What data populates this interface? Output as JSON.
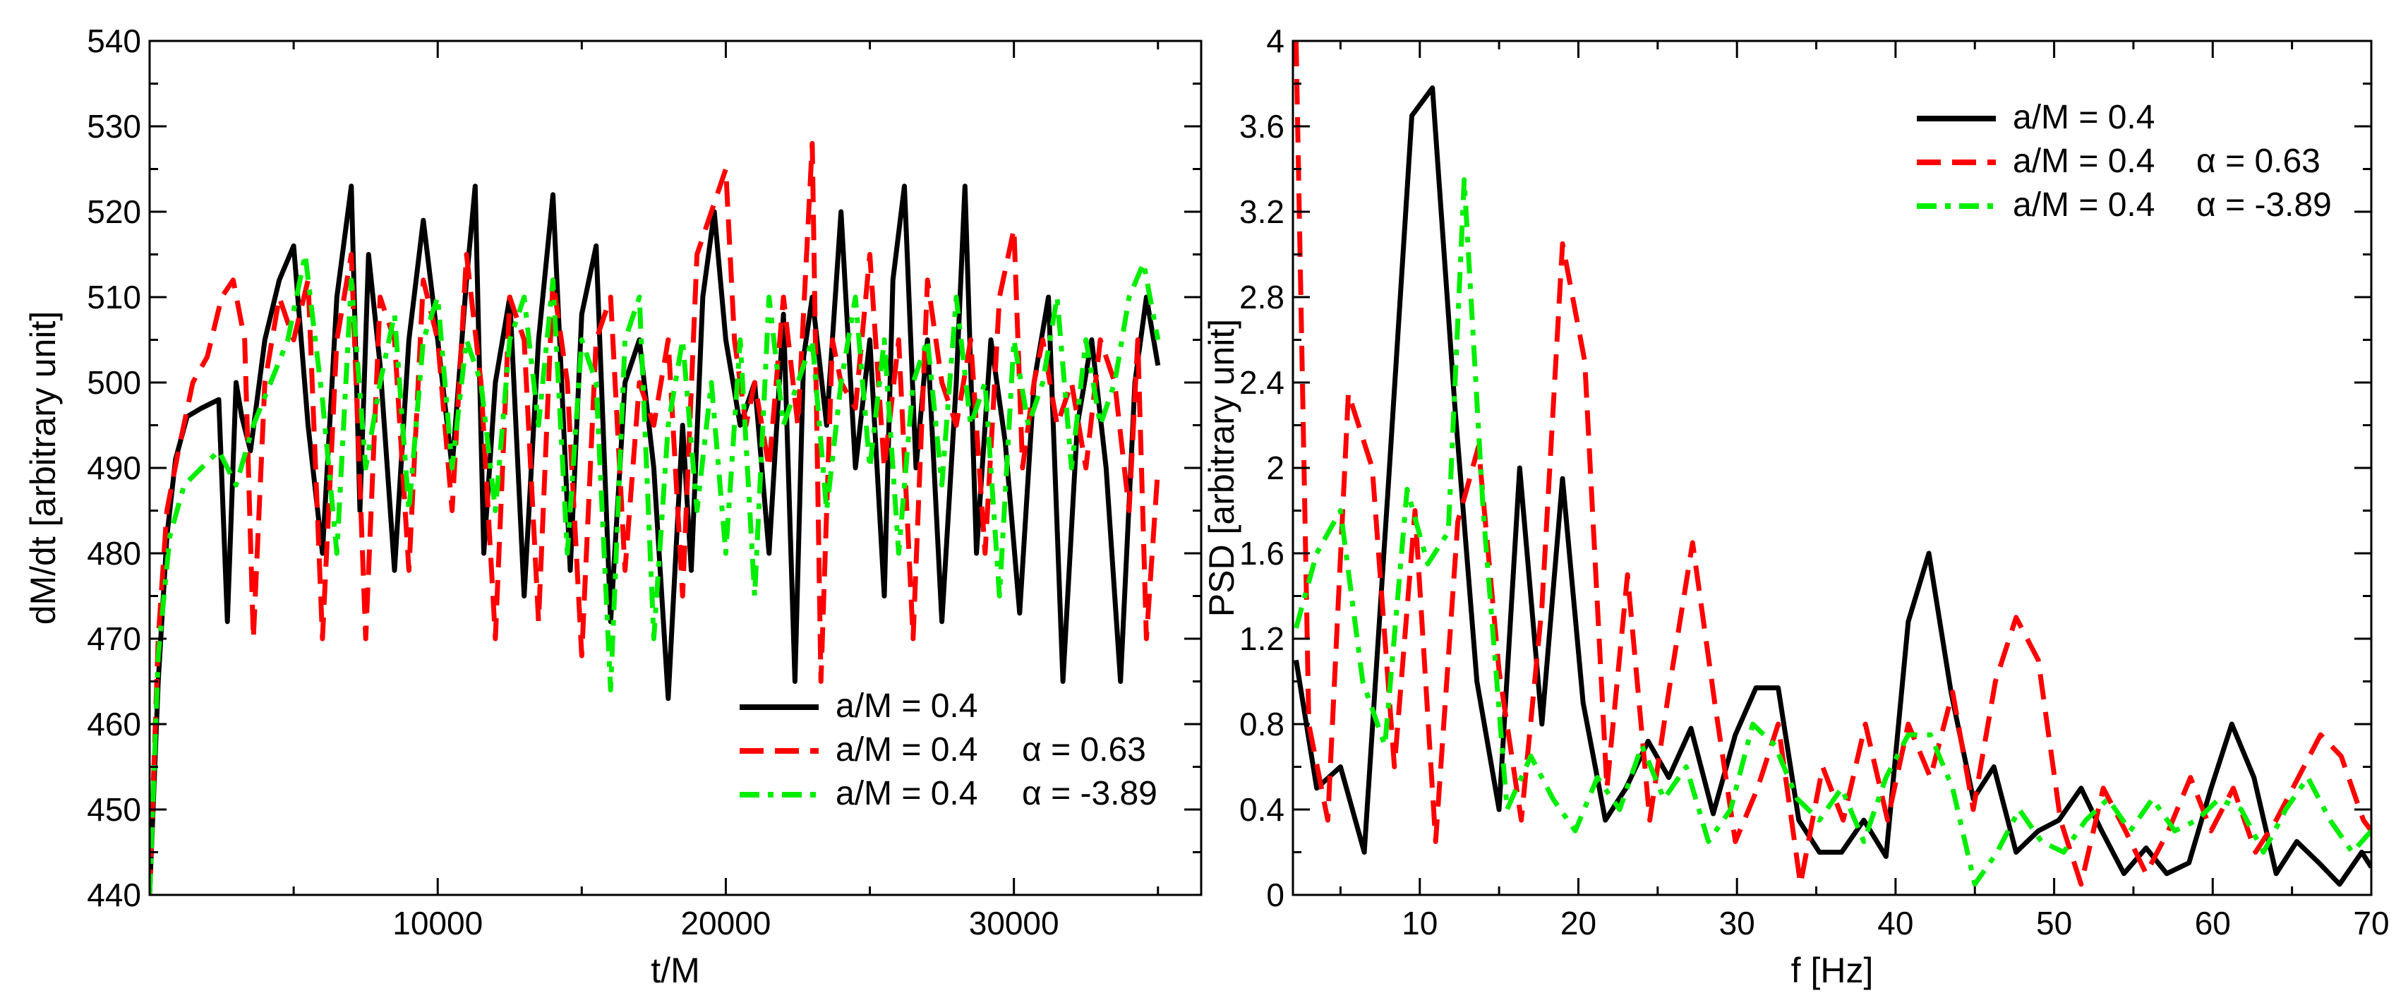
{
  "chart_data": [
    {
      "type": "line",
      "xlabel": "t/M",
      "ylabel": "dM/dt [arbitrary unit]",
      "xlim": [
        0,
        36500
      ],
      "ylim": [
        440,
        540
      ],
      "xticks": [
        10000,
        20000,
        30000
      ],
      "xtick_labels": [
        "10000",
        "20000",
        "30000"
      ],
      "yticks": [
        440,
        450,
        460,
        470,
        480,
        490,
        500,
        510,
        520,
        530,
        540
      ],
      "ytick_labels": [
        "440",
        "450",
        "460",
        "470",
        "480",
        "490",
        "500",
        "510",
        "520",
        "530",
        "540"
      ],
      "legend_position": "bottom-right",
      "series": [
        {
          "name": "a/M = 0.4",
          "legend_label": "a/M = 0.4",
          "legend_param": "",
          "style": "solid",
          "color": "#000000",
          "x": [
            0,
            300,
            600,
            900,
            1300,
            1800,
            2400,
            2700,
            3000,
            3200,
            3500,
            4000,
            4500,
            5000,
            5500,
            6000,
            6500,
            7000,
            7300,
            7600,
            8000,
            8500,
            9000,
            9500,
            10000,
            10500,
            11000,
            11300,
            11600,
            12000,
            12500,
            13000,
            13500,
            14000,
            14300,
            14600,
            15000,
            15500,
            16000,
            16500,
            17000,
            17500,
            18000,
            18500,
            18800,
            19200,
            19600,
            20000,
            20500,
            21000,
            21500,
            22000,
            22400,
            22700,
            23000,
            23500,
            24000,
            24500,
            25000,
            25500,
            25800,
            26200,
            26600,
            27000,
            27500,
            28000,
            28300,
            28700,
            29200,
            29700,
            30200,
            30700,
            31200,
            31700,
            32200,
            32700,
            33200,
            33700,
            34200,
            34600,
            35000
          ],
          "y": [
            440,
            465,
            482,
            491,
            496,
            497,
            498,
            472,
            500,
            496,
            492,
            505,
            512,
            516,
            495,
            480,
            510,
            523,
            485,
            515,
            502,
            478,
            505,
            519,
            505,
            490,
            512,
            523,
            480,
            500,
            510,
            475,
            505,
            522,
            500,
            478,
            508,
            516,
            472,
            500,
            505,
            490,
            463,
            495,
            478,
            510,
            520,
            505,
            495,
            500,
            480,
            508,
            465,
            503,
            510,
            495,
            520,
            490,
            505,
            475,
            512,
            523,
            490,
            505,
            472,
            500,
            523,
            480,
            505,
            493,
            473,
            500,
            510,
            465,
            495,
            505,
            490,
            465,
            500,
            510,
            502
          ]
        },
        {
          "name": "a/M = 0.4 α = 0.63",
          "legend_label": "a/M = 0.4",
          "legend_param": "α = 0.63",
          "style": "dashed",
          "color": "#ff0000",
          "x": [
            0,
            300,
            600,
            1000,
            1500,
            2000,
            2500,
            2900,
            3300,
            3600,
            4000,
            4500,
            5000,
            5500,
            6000,
            6500,
            7000,
            7500,
            8000,
            8500,
            9000,
            9500,
            10000,
            10500,
            11000,
            11500,
            12000,
            12500,
            13000,
            13500,
            14000,
            14500,
            15000,
            15500,
            16000,
            16500,
            17000,
            17500,
            18000,
            18500,
            19000,
            19500,
            20000,
            20300,
            20700,
            21000,
            21500,
            22000,
            22500,
            23000,
            23300,
            23700,
            24000,
            24500,
            25000,
            25500,
            26000,
            26500,
            27000,
            27500,
            28000,
            28500,
            29000,
            29500,
            30000,
            30300,
            30700,
            31000,
            31500,
            32000,
            32500,
            33000,
            33500,
            34000,
            34300,
            34600,
            35000
          ],
          "y": [
            440,
            470,
            485,
            492,
            500,
            503,
            510,
            512,
            505,
            470,
            500,
            510,
            505,
            512,
            470,
            505,
            515,
            470,
            510,
            505,
            478,
            512,
            505,
            485,
            515,
            500,
            470,
            510,
            505,
            472,
            512,
            500,
            468,
            505,
            510,
            478,
            500,
            495,
            505,
            475,
            515,
            520,
            525,
            505,
            495,
            500,
            490,
            510,
            495,
            528,
            465,
            505,
            500,
            497,
            515,
            490,
            505,
            470,
            512,
            500,
            495,
            505,
            480,
            510,
            518,
            490,
            500,
            505,
            495,
            500,
            490,
            505,
            500,
            485,
            505,
            470,
            490
          ]
        },
        {
          "name": "a/M = 0.4 α = -3.89",
          "legend_label": "a/M = 0.4",
          "legend_param": "α = -3.89",
          "style": "dashdot",
          "color": "#00ee00",
          "x": [
            0,
            300,
            700,
            1200,
            1800,
            2400,
            3000,
            3600,
            4200,
            4800,
            5400,
            6000,
            6500,
            7000,
            7500,
            8000,
            8500,
            9000,
            9500,
            10000,
            10500,
            11000,
            11500,
            12000,
            12500,
            13000,
            13500,
            14000,
            14500,
            15000,
            15500,
            16000,
            16500,
            17000,
            17500,
            18000,
            18500,
            19000,
            19500,
            20000,
            20500,
            21000,
            21500,
            22000,
            22500,
            23000,
            23500,
            24000,
            24500,
            25000,
            25500,
            26000,
            26500,
            27000,
            27500,
            28000,
            28500,
            29000,
            29500,
            30000,
            30500,
            31000,
            31500,
            32000,
            32500,
            33000,
            33500,
            34000,
            34500,
            35000
          ],
          "y": [
            440,
            468,
            482,
            488,
            490,
            492,
            488,
            495,
            500,
            505,
            515,
            498,
            480,
            512,
            490,
            500,
            508,
            485,
            505,
            510,
            490,
            505,
            500,
            485,
            505,
            510,
            495,
            512,
            480,
            505,
            500,
            464,
            505,
            510,
            470,
            495,
            505,
            485,
            500,
            480,
            505,
            475,
            510,
            495,
            500,
            505,
            485,
            500,
            510,
            490,
            505,
            480,
            500,
            505,
            488,
            510,
            495,
            500,
            475,
            505,
            495,
            500,
            510,
            490,
            505,
            495,
            500,
            510,
            514,
            505
          ]
        }
      ]
    },
    {
      "type": "line",
      "xlabel": "f [Hz]",
      "ylabel": "PSD [arbitrary unit]",
      "xlim": [
        2,
        70
      ],
      "ylim": [
        0,
        4
      ],
      "xticks": [
        10,
        20,
        30,
        40,
        50,
        60,
        70
      ],
      "xtick_labels": [
        "10",
        "20",
        "30",
        "40",
        "50",
        "60",
        "70"
      ],
      "yticks": [
        0,
        0.4,
        0.8,
        1.2,
        1.6,
        2,
        2.4,
        2.8,
        3.2,
        3.6,
        4
      ],
      "ytick_labels": [
        "0",
        "0.4",
        "0.8",
        "1.2",
        "1.6",
        "2",
        "2.4",
        "2.8",
        "3.2",
        "3.6",
        "4"
      ],
      "legend_position": "top-right",
      "series": [
        {
          "name": "a/M = 0.4",
          "legend_label": "a/M = 0.4",
          "legend_param": "",
          "style": "solid",
          "color": "#000000",
          "x": [
            2.2,
            3.5,
            5,
            6.5,
            8,
            9.5,
            10.8,
            12.2,
            13.6,
            15,
            16.3,
            17.7,
            19,
            20.3,
            21.7,
            23,
            24.4,
            25.7,
            27.1,
            28.5,
            29.9,
            31.2,
            32.6,
            33.9,
            35.2,
            36.6,
            38,
            39.4,
            40.8,
            42.1,
            43.5,
            44.9,
            46.2,
            47.6,
            49,
            50.3,
            51.7,
            53,
            54.4,
            55.8,
            57.1,
            58.5,
            59.9,
            61.2,
            62.6,
            64,
            65.3,
            66.7,
            68,
            69.4,
            70
          ],
          "y": [
            1.1,
            0.5,
            0.6,
            0.2,
            1.9,
            3.65,
            3.78,
            2.3,
            1.0,
            0.4,
            2.0,
            0.8,
            1.95,
            0.9,
            0.35,
            0.5,
            0.72,
            0.55,
            0.78,
            0.38,
            0.75,
            0.97,
            0.97,
            0.35,
            0.2,
            0.2,
            0.35,
            0.18,
            1.28,
            1.6,
            0.95,
            0.45,
            0.6,
            0.2,
            0.3,
            0.35,
            0.5,
            0.3,
            0.1,
            0.22,
            0.1,
            0.15,
            0.5,
            0.8,
            0.55,
            0.1,
            0.25,
            0.15,
            0.05,
            0.2,
            0.13
          ]
        },
        {
          "name": "a/M = 0.4 α = 0.63",
          "legend_label": "a/M = 0.4",
          "legend_param": "α = 0.63",
          "style": "dashed",
          "color": "#ff0000",
          "x": [
            2.2,
            3,
            4.2,
            5.5,
            7,
            8.4,
            9.7,
            11,
            12.4,
            13.7,
            15,
            16.4,
            17.7,
            19,
            20.4,
            21.8,
            23.1,
            24.5,
            25.8,
            27.2,
            28.6,
            29.9,
            31.3,
            32.6,
            34,
            35.4,
            36.7,
            38.1,
            39.5,
            40.8,
            42.2,
            43.6,
            44.9,
            46.3,
            47.6,
            49,
            50.4,
            51.7,
            53.1,
            54.5,
            55.8,
            57.2,
            58.6,
            59.9,
            61.3,
            62.7,
            64,
            65.4,
            66.8,
            68.1,
            69.5,
            70
          ],
          "y": [
            4.0,
            0.8,
            0.35,
            2.35,
            2.0,
            0.6,
            1.8,
            0.25,
            1.75,
            2.1,
            1.05,
            0.35,
            1.35,
            3.05,
            2.5,
            0.5,
            1.5,
            0.35,
            1.0,
            1.65,
            0.9,
            0.25,
            0.5,
            0.8,
            0.05,
            0.6,
            0.35,
            0.8,
            0.35,
            0.8,
            0.55,
            0.95,
            0.4,
            1.0,
            1.3,
            1.1,
            0.35,
            0.05,
            0.5,
            0.3,
            0.1,
            0.3,
            0.55,
            0.3,
            0.5,
            0.2,
            0.35,
            0.55,
            0.75,
            0.65,
            0.35,
            0.3
          ]
        },
        {
          "name": "a/M = 0.4 α = -3.89",
          "legend_label": "a/M = 0.4",
          "legend_param": "α = -3.89",
          "style": "dashdot",
          "color": "#00ee00",
          "x": [
            2.2,
            3.5,
            5,
            6.4,
            7.8,
            9.2,
            10.5,
            11.8,
            12.8,
            14,
            15.5,
            17,
            18.4,
            19.8,
            21.2,
            22.6,
            24,
            25.4,
            26.8,
            28.2,
            29.6,
            31,
            32.4,
            33.8,
            35.2,
            36.6,
            38,
            39.4,
            40.8,
            42.2,
            43.6,
            45,
            46.4,
            47.8,
            49.2,
            50.6,
            52,
            53.4,
            54.8,
            56.2,
            57.6,
            59,
            60.4,
            61.8,
            63.2,
            64.6,
            66,
            67.4,
            68.8,
            70
          ],
          "y": [
            1.25,
            1.6,
            1.8,
            1.0,
            0.7,
            1.9,
            1.55,
            1.7,
            3.35,
            1.8,
            0.4,
            0.65,
            0.45,
            0.3,
            0.55,
            0.4,
            0.7,
            0.45,
            0.6,
            0.25,
            0.4,
            0.8,
            0.7,
            0.45,
            0.35,
            0.5,
            0.25,
            0.55,
            0.75,
            0.75,
            0.5,
            0.05,
            0.2,
            0.4,
            0.25,
            0.2,
            0.35,
            0.45,
            0.3,
            0.45,
            0.3,
            0.35,
            0.45,
            0.4,
            0.2,
            0.4,
            0.55,
            0.35,
            0.2,
            0.3
          ]
        }
      ]
    }
  ]
}
